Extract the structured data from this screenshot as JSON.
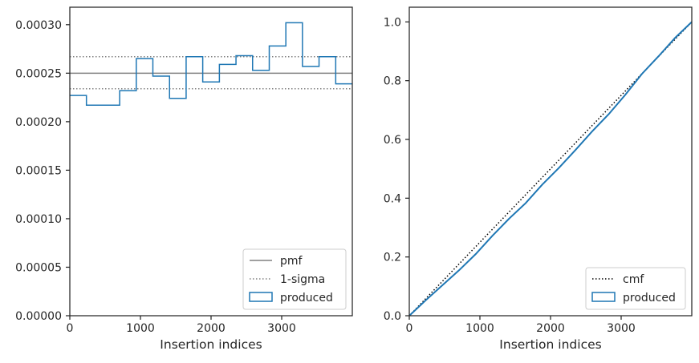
{
  "colors": {
    "produced": "#1f77b4",
    "pmf": "#808080",
    "cmf": "#000000",
    "axes": "#262626",
    "legend_border": "#cccccc"
  },
  "chart_data": [
    {
      "type": "step",
      "xlabel": "Insertion indices",
      "ylabel": "",
      "xlim": [
        0,
        4000
      ],
      "ylim": [
        0,
        0.000318
      ],
      "xticks": [
        0,
        1000,
        2000,
        3000
      ],
      "xtick_labels": [
        "0",
        "1000",
        "2000",
        "3000"
      ],
      "yticks": [
        0,
        5e-05,
        0.0001,
        0.00015,
        0.0002,
        0.00025,
        0.0003
      ],
      "ytick_labels": [
        "0.00000",
        "0.00005",
        "0.00010",
        "0.00015",
        "0.00020",
        "0.00025",
        "0.00030"
      ],
      "reference_lines": [
        {
          "name": "pmf",
          "y": 0.00025,
          "style": "solid"
        },
        {
          "name": "1-sigma",
          "y": 0.000267,
          "style": "dotted"
        },
        {
          "name": "1-sigma",
          "y": 0.000234,
          "style": "dotted"
        }
      ],
      "series": [
        {
          "name": "produced",
          "bin_edges": [
            0,
            235,
            470,
            706,
            941,
            1176,
            1412,
            1647,
            1882,
            2118,
            2353,
            2588,
            2824,
            3059,
            3294,
            3529,
            3765,
            4000
          ],
          "values": [
            0.000227,
            0.000217,
            0.000217,
            0.000232,
            0.000265,
            0.000247,
            0.000224,
            0.000267,
            0.000241,
            0.000259,
            0.000268,
            0.000253,
            0.000278,
            0.000302,
            0.000257,
            0.000267,
            0.000239
          ]
        }
      ],
      "legend": {
        "position": "lower-right",
        "entries": [
          "pmf",
          "1-sigma",
          "produced"
        ]
      },
      "grid": false
    },
    {
      "type": "line",
      "xlabel": "Insertion indices",
      "ylabel": "",
      "xlim": [
        0,
        4000
      ],
      "ylim": [
        0,
        1.05
      ],
      "xticks": [
        0,
        1000,
        2000,
        3000
      ],
      "xtick_labels": [
        "0",
        "1000",
        "2000",
        "3000"
      ],
      "yticks": [
        0,
        0.2,
        0.4,
        0.6,
        0.8,
        1.0
      ],
      "ytick_labels": [
        "0.0",
        "0.2",
        "0.4",
        "0.6",
        "0.8",
        "1.0"
      ],
      "series": [
        {
          "name": "cmf",
          "style": "dotted",
          "x": [
            0,
            4000
          ],
          "y": [
            0,
            1.0
          ]
        },
        {
          "name": "produced",
          "style": "solid",
          "x": [
            0,
            235,
            470,
            706,
            941,
            1176,
            1412,
            1647,
            1882,
            2118,
            2353,
            2588,
            2824,
            3059,
            3294,
            3529,
            3765,
            4000
          ],
          "y": [
            0,
            0.053,
            0.104,
            0.155,
            0.21,
            0.272,
            0.33,
            0.383,
            0.446,
            0.503,
            0.564,
            0.627,
            0.686,
            0.752,
            0.823,
            0.883,
            0.946,
            1.0
          ]
        }
      ],
      "legend": {
        "position": "lower-right",
        "entries": [
          "cmf",
          "produced"
        ]
      },
      "grid": false
    }
  ]
}
